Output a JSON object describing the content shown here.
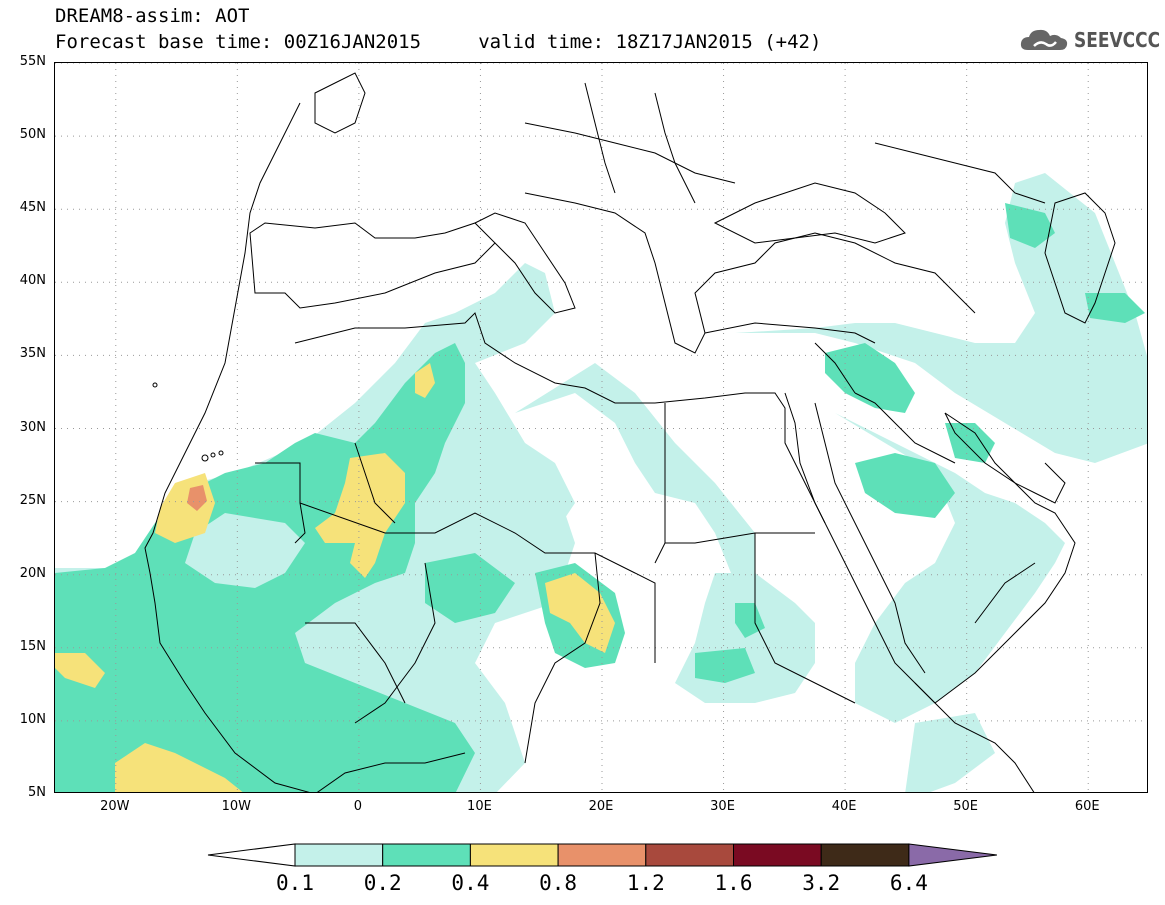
{
  "header": {
    "line1": "DREAM8-assim: AOT",
    "line2": "Forecast base time: 00Z16JAN2015     valid time: 18Z17JAN2015 (+42)"
  },
  "logo": {
    "text": "SEEVCCC",
    "icon": "cloud-icon"
  },
  "map": {
    "projection": "lat-lon",
    "lon_range": [
      -25,
      65
    ],
    "lat_range": [
      5,
      55
    ],
    "grid": true,
    "lat_ticks": [
      "55N",
      "50N",
      "45N",
      "40N",
      "35N",
      "30N",
      "25N",
      "20N",
      "15N",
      "10N",
      "5N"
    ],
    "lat_tick_values": [
      55,
      50,
      45,
      40,
      35,
      30,
      25,
      20,
      15,
      10,
      5
    ],
    "lon_ticks": [
      "20W",
      "10W",
      "0",
      "10E",
      "20E",
      "30E",
      "40E",
      "50E",
      "60E"
    ],
    "lon_tick_values": [
      -20,
      -10,
      0,
      10,
      20,
      30,
      40,
      50,
      60
    ]
  },
  "colorbar": {
    "levels": [
      "0.1",
      "0.2",
      "0.4",
      "0.8",
      "1.2",
      "1.6",
      "3.2",
      "6.4"
    ],
    "colors": [
      "#ffffff",
      "#c4f1ea",
      "#5ee0b8",
      "#f6e27a",
      "#e8916a",
      "#a8493d",
      "#7a0a22",
      "#3e2a18",
      "#8a6aa8"
    ]
  },
  "dust_fields": {
    "level_0_1_color": "#c4f1ea",
    "level_0_2_color": "#5ee0b8",
    "level_0_4_color": "#f6e27a",
    "level_0_8_color": "#e8916a"
  }
}
